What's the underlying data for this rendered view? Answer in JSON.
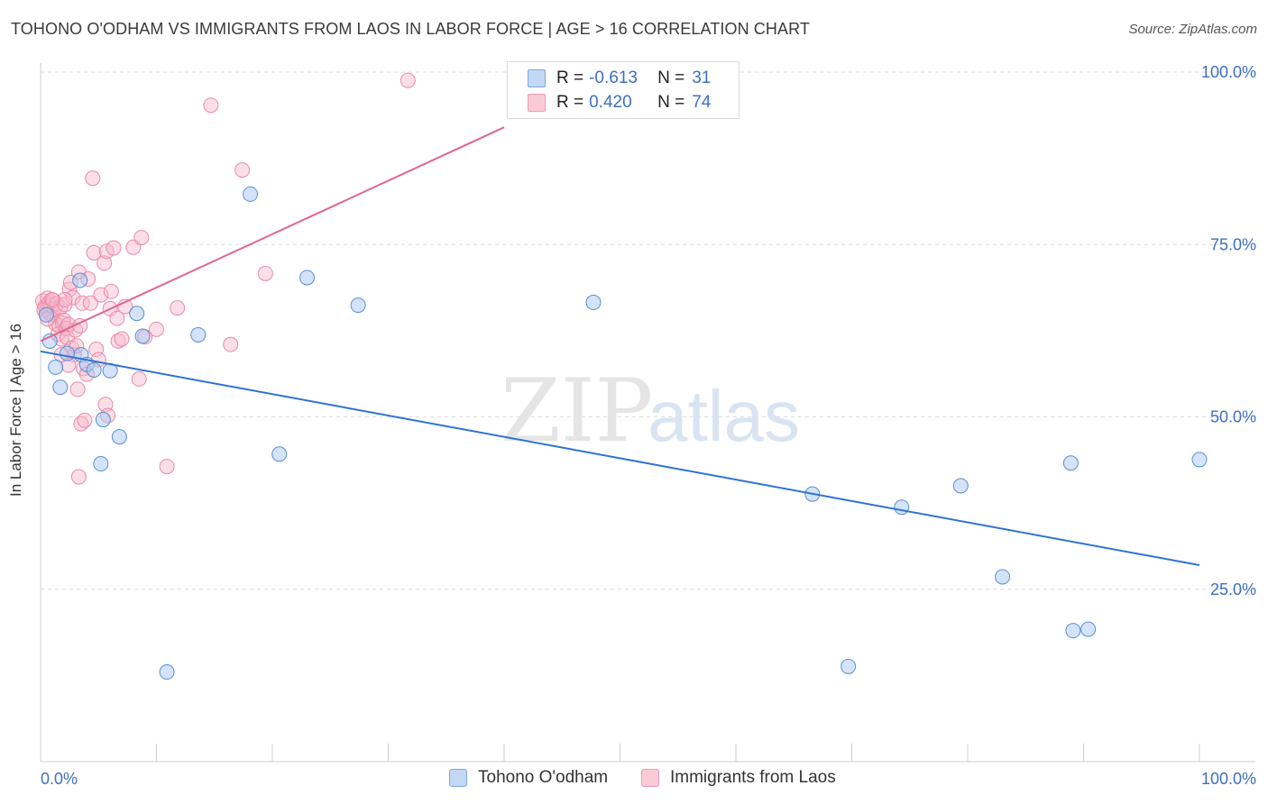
{
  "title": "TOHONO O'ODHAM VS IMMIGRANTS FROM LAOS IN LABOR FORCE | AGE > 16 CORRELATION CHART",
  "source": "Source: ZipAtlas.com",
  "watermark": {
    "zip": "ZIP",
    "atlas": "atlas"
  },
  "legend_top": {
    "rows": [
      {
        "r_label": "R =",
        "r_value": "-0.613",
        "n_label": "N =",
        "n_value": "31"
      },
      {
        "r_label": "R =",
        "r_value": "0.420",
        "n_label": "N =",
        "n_value": "74"
      }
    ]
  },
  "legend_bottom": {
    "items": [
      "Tohono O'odham",
      "Immigrants from Laos"
    ]
  },
  "colors": {
    "blue_fill": "#aac8ef",
    "blue_stroke": "#5a8fd6",
    "blue_line": "#2f72d2",
    "pink_fill": "#f6b8cb",
    "pink_stroke": "#e98aa8",
    "pink_line": "#e0658e",
    "tick_text": "#3e6fc0",
    "grid": "#dcdcdc"
  },
  "chart_data": {
    "type": "scatter",
    "title": "TOHONO O'ODHAM VS IMMIGRANTS FROM LAOS IN LABOR FORCE | AGE > 16 CORRELATION CHART",
    "xlabel": "",
    "ylabel": "In Labor Force | Age > 16",
    "xlim": [
      0,
      100
    ],
    "ylim": [
      0,
      105
    ],
    "x_ticks": [
      "0.0%",
      "100.0%"
    ],
    "y_ticks": [
      "100.0%",
      "75.0%",
      "50.0%",
      "25.0%"
    ],
    "y_tick_values": [
      100,
      75,
      50,
      25
    ],
    "grid": true,
    "legend": "bottom",
    "series": [
      {
        "name": "Tohono O'odham",
        "color": "blue",
        "r": -0.613,
        "n": 31,
        "trend": {
          "x": [
            0,
            100
          ],
          "y": [
            59.5,
            28.5
          ]
        },
        "points": [
          [
            0.8,
            61.0
          ],
          [
            1.3,
            57.2
          ],
          [
            1.7,
            54.3
          ],
          [
            2.3,
            59.2
          ],
          [
            3.5,
            59.0
          ],
          [
            3.4,
            69.8
          ],
          [
            4.0,
            57.6
          ],
          [
            4.6,
            56.8
          ],
          [
            5.2,
            43.2
          ],
          [
            5.4,
            49.6
          ],
          [
            6.0,
            56.7
          ],
          [
            6.8,
            47.1
          ],
          [
            8.3,
            65.0
          ],
          [
            8.8,
            61.7
          ],
          [
            10.9,
            13.0
          ],
          [
            13.6,
            61.9
          ],
          [
            18.1,
            82.3
          ],
          [
            20.6,
            44.6
          ],
          [
            23.0,
            70.2
          ],
          [
            27.4,
            66.2
          ],
          [
            47.7,
            66.6
          ],
          [
            66.6,
            38.8
          ],
          [
            69.7,
            13.8
          ],
          [
            74.3,
            36.9
          ],
          [
            79.4,
            40.0
          ],
          [
            83.0,
            26.8
          ],
          [
            88.9,
            43.3
          ],
          [
            89.1,
            19.0
          ],
          [
            90.4,
            19.2
          ],
          [
            100.0,
            43.8
          ],
          [
            0.5,
            64.8
          ]
        ]
      },
      {
        "name": "Immigrants from Laos",
        "color": "pink",
        "r": 0.42,
        "n": 74,
        "trend": {
          "x": [
            0,
            40
          ],
          "y": [
            61.0,
            92.0
          ]
        },
        "points": [
          [
            0.2,
            66.8
          ],
          [
            0.4,
            66.0
          ],
          [
            0.5,
            65.4
          ],
          [
            0.6,
            67.2
          ],
          [
            0.7,
            66.5
          ],
          [
            0.8,
            65.0
          ],
          [
            0.9,
            66.2
          ],
          [
            1.0,
            64.8
          ],
          [
            1.1,
            66.9
          ],
          [
            1.2,
            65.7
          ],
          [
            1.3,
            63.5
          ],
          [
            1.4,
            66.4
          ],
          [
            1.5,
            62.0
          ],
          [
            1.6,
            63.2
          ],
          [
            1.7,
            65.8
          ],
          [
            1.8,
            61.3
          ],
          [
            1.9,
            63.6
          ],
          [
            2.0,
            64.0
          ],
          [
            2.1,
            66.3
          ],
          [
            2.2,
            62.8
          ],
          [
            2.3,
            61.5
          ],
          [
            2.4,
            63.4
          ],
          [
            2.5,
            68.5
          ],
          [
            2.6,
            69.5
          ],
          [
            2.7,
            60.0
          ],
          [
            2.8,
            67.3
          ],
          [
            2.9,
            59.0
          ],
          [
            3.0,
            62.6
          ],
          [
            3.1,
            60.3
          ],
          [
            3.2,
            54.0
          ],
          [
            3.3,
            71.0
          ],
          [
            3.4,
            63.2
          ],
          [
            3.5,
            49.0
          ],
          [
            3.6,
            66.5
          ],
          [
            3.7,
            57.0
          ],
          [
            3.8,
            49.5
          ],
          [
            3.3,
            41.3
          ],
          [
            4.0,
            56.2
          ],
          [
            4.1,
            70.0
          ],
          [
            4.3,
            66.5
          ],
          [
            4.5,
            84.6
          ],
          [
            4.6,
            73.8
          ],
          [
            4.8,
            59.8
          ],
          [
            5.0,
            58.3
          ],
          [
            5.2,
            67.7
          ],
          [
            5.5,
            72.3
          ],
          [
            5.6,
            51.8
          ],
          [
            5.7,
            74.0
          ],
          [
            5.8,
            50.2
          ],
          [
            6.0,
            65.7
          ],
          [
            6.1,
            68.2
          ],
          [
            6.3,
            74.5
          ],
          [
            6.6,
            64.3
          ],
          [
            6.7,
            61.0
          ],
          [
            7.0,
            61.3
          ],
          [
            7.3,
            66.0
          ],
          [
            8.0,
            74.6
          ],
          [
            8.5,
            55.5
          ],
          [
            8.7,
            76.0
          ],
          [
            9.0,
            61.6
          ],
          [
            10.0,
            62.7
          ],
          [
            10.9,
            42.8
          ],
          [
            11.8,
            65.8
          ],
          [
            14.7,
            95.2
          ],
          [
            16.4,
            60.5
          ],
          [
            17.4,
            85.8
          ],
          [
            19.4,
            70.8
          ],
          [
            31.7,
            98.8
          ],
          [
            2.1,
            67.0
          ],
          [
            0.3,
            65.5
          ],
          [
            1.0,
            67.0
          ],
          [
            0.6,
            64.2
          ],
          [
            2.4,
            57.5
          ],
          [
            1.8,
            59.0
          ]
        ]
      }
    ]
  }
}
